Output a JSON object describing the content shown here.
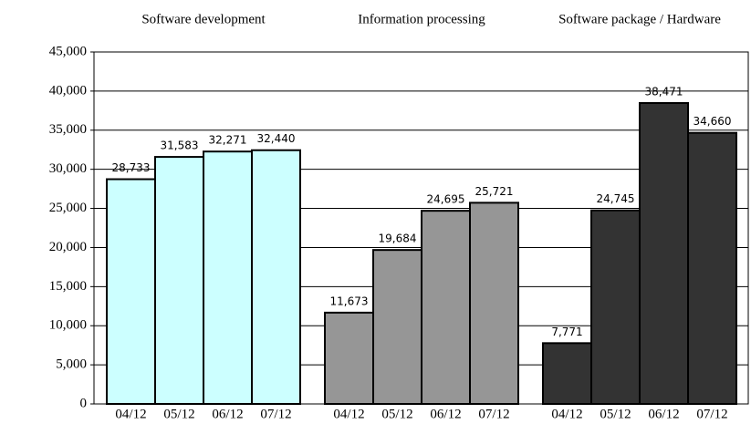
{
  "chart_data": {
    "type": "grouped-bar",
    "groups": [
      {
        "name": "Software development",
        "color": "#ccffff",
        "categories": [
          "04/12",
          "05/12",
          "06/12",
          "07/12"
        ],
        "values": [
          28733,
          31583,
          32271,
          32440
        ],
        "value_labels": [
          "28,733",
          "31,583",
          "32,271",
          "32,440"
        ]
      },
      {
        "name": "Information processing",
        "color": "#969696",
        "categories": [
          "04/12",
          "05/12",
          "06/12",
          "07/12"
        ],
        "values": [
          11673,
          19684,
          24695,
          25721
        ],
        "value_labels": [
          "11,673",
          "19,684",
          "24,695",
          "25,721"
        ]
      },
      {
        "name": "Software package / Hardware",
        "color": "#333333",
        "categories": [
          "04/12",
          "05/12",
          "06/12",
          "07/12"
        ],
        "values": [
          7771,
          24745,
          38471,
          34660
        ],
        "value_labels": [
          "7,771",
          "24,745",
          "38,471",
          "34,660"
        ]
      }
    ],
    "ylim": [
      0,
      45000
    ],
    "yticks": [
      0,
      {
        "value": 5000,
        "label": "5,000"
      },
      {
        "value": 10000,
        "label": "10,000"
      },
      {
        "value": 15000,
        "label": "15,000"
      },
      {
        "value": 20000,
        "label": "20,000"
      },
      {
        "value": 25000,
        "label": "25,000"
      },
      {
        "value": 30000,
        "label": "30,000"
      },
      {
        "value": 35000,
        "label": "35,000"
      },
      {
        "value": 40000,
        "label": "40,000"
      },
      {
        "value": 45000,
        "label": "45,000"
      }
    ],
    "grid": true
  }
}
